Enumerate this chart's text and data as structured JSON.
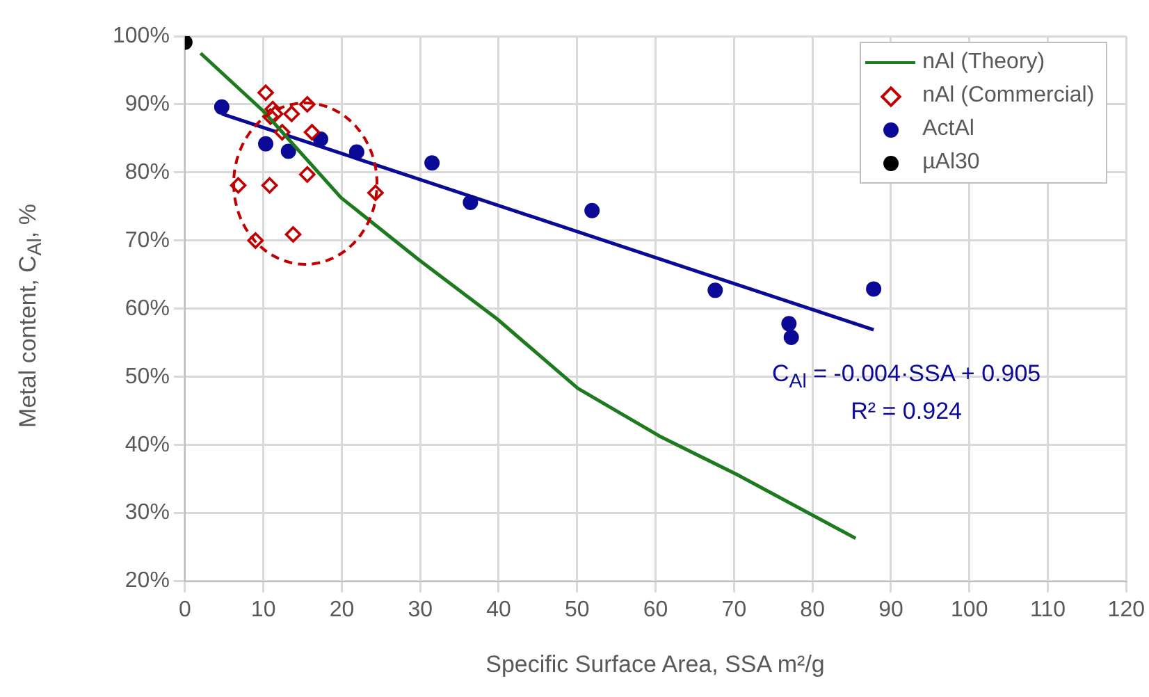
{
  "chart_data": {
    "type": "scatter",
    "xlabel": "Specific Surface Area, SSA m²/g",
    "ylabel": "Metal content, C$_{Al}$, %",
    "xlim": [
      0,
      120
    ],
    "xticks": [
      0,
      10,
      20,
      30,
      40,
      50,
      60,
      70,
      80,
      90,
      100,
      110,
      120
    ],
    "ylim": [
      20,
      100
    ],
    "yticks": [
      {
        "value": 20,
        "label": "20%"
      },
      {
        "value": 30,
        "label": "30%"
      },
      {
        "value": 40,
        "label": "40%"
      },
      {
        "value": 50,
        "label": "50%"
      },
      {
        "value": 60,
        "label": "60%"
      },
      {
        "value": 70,
        "label": "70%"
      },
      {
        "value": 80,
        "label": "80%"
      },
      {
        "value": 90,
        "label": "90%"
      },
      {
        "value": 100,
        "label": "100%"
      }
    ],
    "grid": true,
    "legend": "top right",
    "series": [
      {
        "name": "nAl (Theory)",
        "type": "line",
        "marker": "none",
        "color": "#1e7a1e",
        "x": [
          2.0,
          10.0,
          19.9,
          29.8,
          39.8,
          50.1,
          60.5,
          70.3,
          85.5
        ],
        "values": [
          97.5,
          89.0,
          76.3,
          67.2,
          58.5,
          48.3,
          41.3,
          35.7,
          26.3
        ]
      },
      {
        "name": "nAl (Commercial)",
        "type": "scatter",
        "marker": "diamond",
        "color": "#c00000",
        "x": [
          10.3,
          11.2,
          11.5,
          10.9,
          15.6,
          13.6,
          12.4,
          16.2,
          15.6,
          6.8,
          10.8,
          24.3,
          9.0,
          13.8
        ],
        "values": [
          91.7,
          89.3,
          88.6,
          88.2,
          90.0,
          88.6,
          85.9,
          85.9,
          79.7,
          78.1,
          78.1,
          77.0,
          70.0,
          70.9
        ]
      },
      {
        "name": "ActAl",
        "type": "scatter",
        "marker": "circle",
        "color": "#0a0a96",
        "x": [
          4.7,
          10.3,
          13.2,
          17.3,
          21.9,
          31.5,
          36.4,
          51.9,
          67.6,
          77.0,
          77.3,
          87.8
        ],
        "values": [
          89.6,
          84.2,
          83.1,
          84.9,
          83.0,
          81.4,
          75.6,
          74.4,
          62.7,
          57.8,
          55.8,
          62.9
        ]
      },
      {
        "name": "µAl30",
        "type": "scatter",
        "marker": "circle",
        "color": "#000000",
        "x": [
          0
        ],
        "values": [
          99.1
        ]
      },
      {
        "type": "line",
        "marker": "none",
        "color": "#0a0a96",
        "x": [
          4.7,
          87.8
        ],
        "values": [
          88.6,
          56.9
        ]
      }
    ],
    "annotations": [
      "C$_{Al}$ = -0.004·SSA + 0.905",
      "R² = 0.924"
    ]
  }
}
